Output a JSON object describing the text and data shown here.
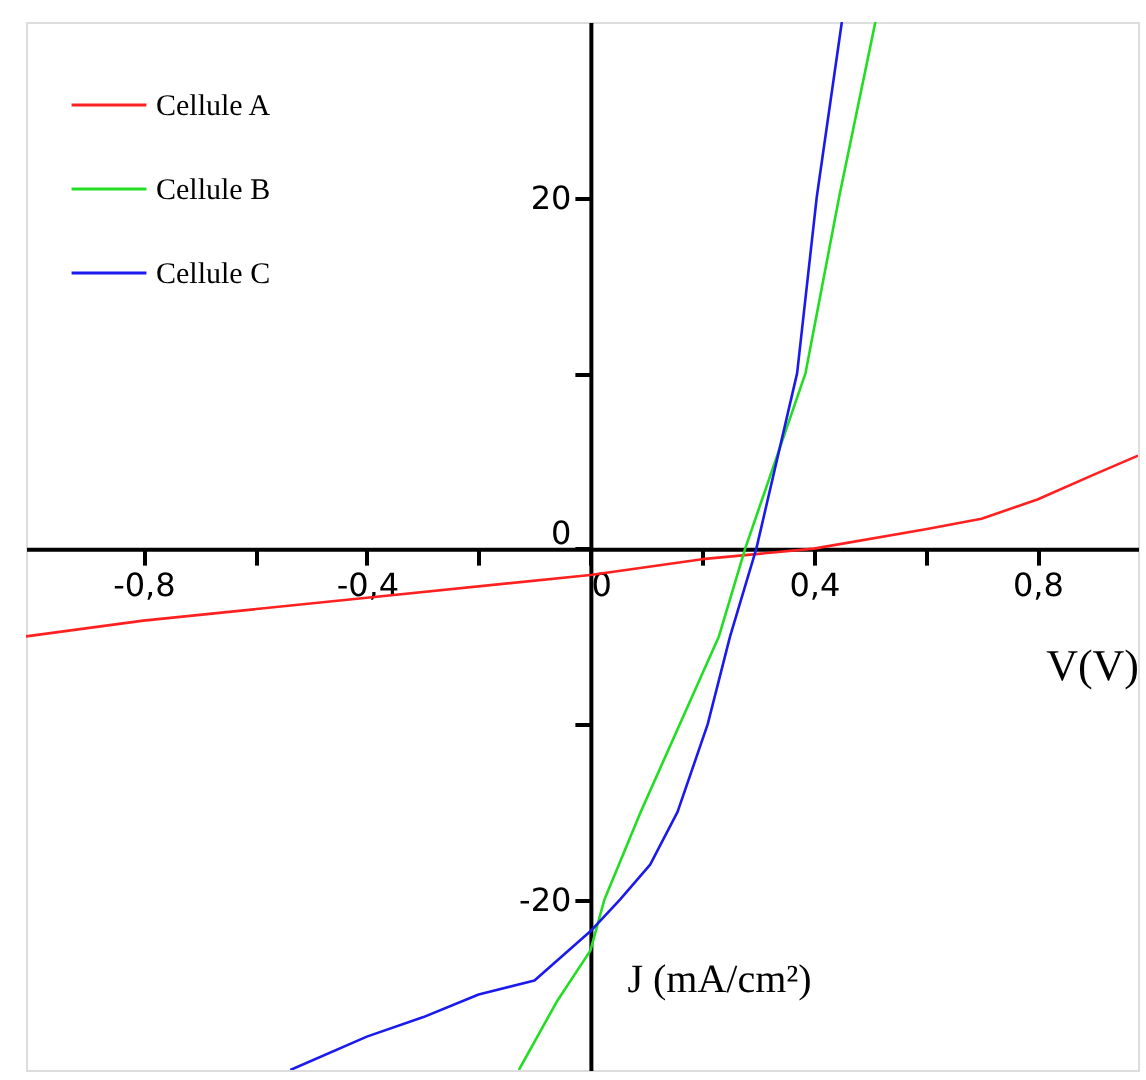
{
  "chart_data": {
    "type": "line",
    "xlabel": "V(V)",
    "ylabel": "J (mA/cm²)",
    "xlim": [
      -1.01,
      0.98
    ],
    "ylim": [
      -29.7,
      30
    ],
    "xticks": [
      {
        "value": -0.8,
        "label": "-0,8"
      },
      {
        "value": -0.6,
        "label": null
      },
      {
        "value": -0.4,
        "label": "-0,4"
      },
      {
        "value": -0.2,
        "label": null
      },
      {
        "value": 0,
        "label": "0"
      },
      {
        "value": 0.2,
        "label": null
      },
      {
        "value": 0.4,
        "label": "0,4"
      },
      {
        "value": 0.6,
        "label": null
      },
      {
        "value": 0.8,
        "label": "0,8"
      }
    ],
    "yticks": [
      -20,
      {
        "value": -10,
        "label": null
      },
      0,
      {
        "value": 10,
        "label": null
      },
      20
    ],
    "grid": false,
    "legend": "top left",
    "marker": "none",
    "line_style": "solid",
    "series": [
      {
        "name": "Cellule A",
        "color": "#ff2020",
        "x": [
          -1.01,
          -0.8,
          -0.4,
          0,
          0.2,
          0.4,
          0.6,
          0.7,
          0.8,
          0.9,
          0.98
        ],
        "values": [
          -5.0,
          -4.1,
          -2.8,
          -1.5,
          -0.6,
          0,
          1.1,
          1.7,
          2.8,
          4.2,
          5.3
        ]
      },
      {
        "name": "Cellule B",
        "color": "#22dd22",
        "x": [
          -0.128,
          -0.06,
          0,
          0.025,
          0.09,
          0.16,
          0.23,
          0.277,
          0.385,
          0.445,
          0.51
        ],
        "values": [
          -29.7,
          -25.8,
          -22.9,
          -20,
          -15,
          -10,
          -5,
          0,
          10,
          20,
          30
        ]
      },
      {
        "name": "Cellule C",
        "color": "#1a1aee",
        "x": [
          -0.537,
          -0.4,
          -0.3,
          -0.2,
          -0.1,
          0,
          0.053,
          0.107,
          0.156,
          0.21,
          0.25,
          0.297,
          0.37,
          0.405,
          0.45
        ],
        "values": [
          -29.7,
          -27.8,
          -26.7,
          -25.4,
          -24.6,
          -21.8,
          -20,
          -18,
          -15,
          -10,
          -5,
          0,
          10,
          20,
          30
        ]
      }
    ]
  }
}
